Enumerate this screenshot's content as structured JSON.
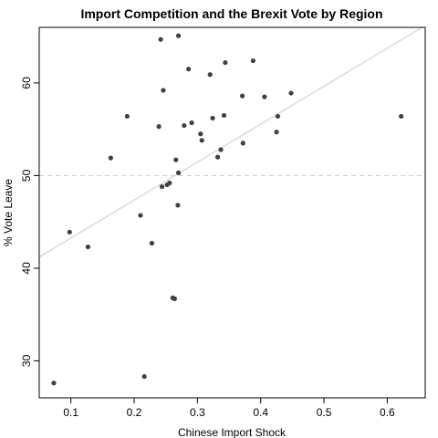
{
  "chart_data": {
    "type": "scatter",
    "title": "Import Competition and the Brexit Vote by Region",
    "xlabel": "Chinese Import Shock",
    "ylabel": "% Vote Leave",
    "xlim": [
      0.05,
      0.66
    ],
    "ylim": [
      26,
      66
    ],
    "xticks": [
      0.1,
      0.2,
      0.3,
      0.4,
      0.5,
      0.6
    ],
    "xtick_labels": [
      "0.1",
      "0.2",
      "0.3",
      "0.4",
      "0.5",
      "0.6"
    ],
    "yticks": [
      30,
      40,
      50,
      60
    ],
    "ytick_labels": [
      "30",
      "40",
      "50",
      "60"
    ],
    "reference_line": {
      "y": 50,
      "style": "dashed",
      "color": "#cccccc"
    },
    "fit_line": {
      "x": [
        0.05,
        0.66
      ],
      "y": [
        41.2,
        66.2
      ],
      "color": "#c8c8c8"
    },
    "point_color": "#404040",
    "grid": false,
    "points": [
      {
        "x": 0.073,
        "y": 27.6
      },
      {
        "x": 0.098,
        "y": 43.9
      },
      {
        "x": 0.127,
        "y": 42.3
      },
      {
        "x": 0.163,
        "y": 51.9
      },
      {
        "x": 0.189,
        "y": 56.4
      },
      {
        "x": 0.21,
        "y": 45.7
      },
      {
        "x": 0.216,
        "y": 28.3
      },
      {
        "x": 0.228,
        "y": 42.7
      },
      {
        "x": 0.239,
        "y": 55.3
      },
      {
        "x": 0.242,
        "y": 64.7
      },
      {
        "x": 0.244,
        "y": 48.8
      },
      {
        "x": 0.246,
        "y": 59.2
      },
      {
        "x": 0.252,
        "y": 49.0
      },
      {
        "x": 0.256,
        "y": 49.2
      },
      {
        "x": 0.261,
        "y": 36.8
      },
      {
        "x": 0.264,
        "y": 36.7
      },
      {
        "x": 0.266,
        "y": 51.7
      },
      {
        "x": 0.269,
        "y": 46.8
      },
      {
        "x": 0.27,
        "y": 50.3
      },
      {
        "x": 0.27,
        "y": 65.1
      },
      {
        "x": 0.279,
        "y": 55.4
      },
      {
        "x": 0.286,
        "y": 61.5
      },
      {
        "x": 0.291,
        "y": 55.7
      },
      {
        "x": 0.305,
        "y": 54.5
      },
      {
        "x": 0.307,
        "y": 53.8
      },
      {
        "x": 0.32,
        "y": 60.9
      },
      {
        "x": 0.324,
        "y": 56.2
      },
      {
        "x": 0.332,
        "y": 52.0
      },
      {
        "x": 0.337,
        "y": 52.8
      },
      {
        "x": 0.342,
        "y": 56.5
      },
      {
        "x": 0.344,
        "y": 62.2
      },
      {
        "x": 0.371,
        "y": 58.6
      },
      {
        "x": 0.372,
        "y": 53.5
      },
      {
        "x": 0.388,
        "y": 62.4
      },
      {
        "x": 0.406,
        "y": 58.5
      },
      {
        "x": 0.425,
        "y": 54.7
      },
      {
        "x": 0.427,
        "y": 56.4
      },
      {
        "x": 0.448,
        "y": 58.9
      },
      {
        "x": 0.622,
        "y": 56.4
      }
    ]
  }
}
